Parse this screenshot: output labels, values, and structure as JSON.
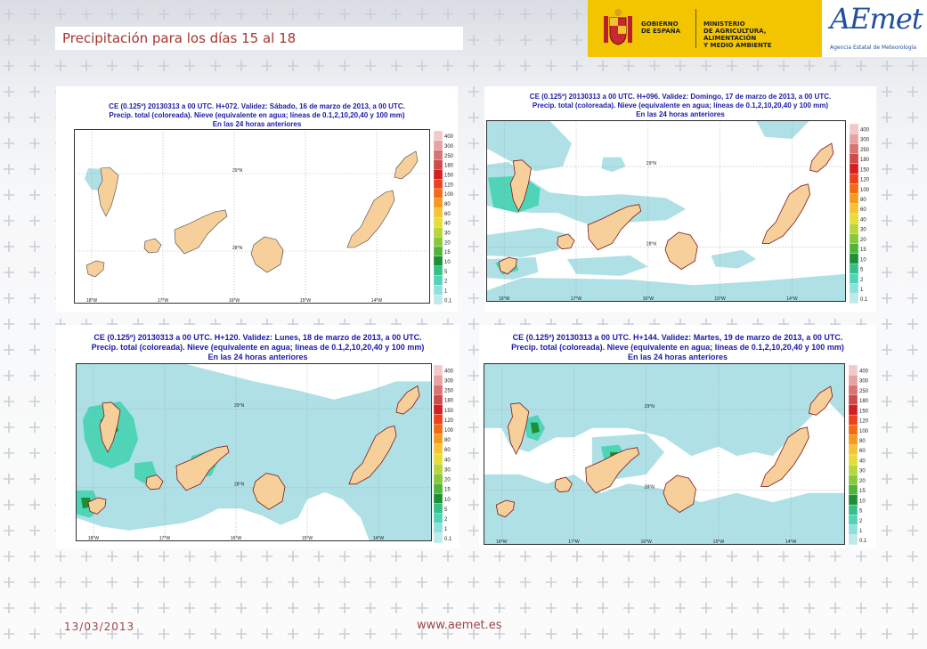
{
  "page": {
    "title": "Precipitación para los días 15 al 18",
    "date": "13/03/2013",
    "url": "www.aemet.es"
  },
  "header": {
    "gobierno": "GOBIERNO\nDE ESPAÑA",
    "ministerio": "MINISTERIO\nDE AGRICULTURA, ALIMENTACIÓN\nY MEDIO AMBIENTE",
    "aemet_logo": "AEmet",
    "aemet_sub": "Agencia Estatal de Meteorología"
  },
  "legend": {
    "values": [
      "400",
      "300",
      "250",
      "180",
      "150",
      "120",
      "100",
      "80",
      "60",
      "40",
      "30",
      "20",
      "15",
      "10",
      "5",
      "2",
      "1",
      "0.1"
    ],
    "colors": [
      "#f2c9c9",
      "#e6a3a3",
      "#d77474",
      "#cf4a4a",
      "#d22020",
      "#ef3f1c",
      "#f26a14",
      "#f59a1f",
      "#f7c233",
      "#e6dd3a",
      "#b9d53a",
      "#89c83b",
      "#4fb43c",
      "#1f8f36",
      "#35c08a",
      "#4fd4b8",
      "#8fe0dc",
      "#bfe9ea"
    ]
  },
  "axes": {
    "lon_labels": [
      "18°W",
      "17°W",
      "16°W",
      "15°W",
      "14°W"
    ],
    "lat_labels": [
      "29°N",
      "28°N"
    ]
  },
  "colors": {
    "land": "#f7cf9a",
    "light_precip": "#aee0e6",
    "moderate_precip": "#4fd4b8",
    "heavy_precip": "#1f8f36",
    "caption": "#1a1aa8",
    "title": "#a4362e"
  },
  "maps": [
    {
      "line1": "CE (0.125º) 20130313 a 00 UTC.  H+072.  Validez: Sábado, 16 de marzo de 2013,  a  00 UTC.",
      "line2": "Precip. total (coloreada). Nieve (equivalente en agua; líneas de 0.1,2,10,20,40 y 100 mm)",
      "line3": "En las 24 horas anteriores"
    },
    {
      "line1": "CE (0.125º) 20130313 a 00 UTC.  H+096.  Validez: Domingo, 17 de marzo de 2013,  a  00 UTC.",
      "line2": "Precip. total (coloreada). Nieve (equivalente en agua; líneas de 0.1,2,10,20,40 y 100 mm)",
      "line3": "En las 24 horas anteriores"
    },
    {
      "line1": "CE (0.125º) 20130313 a 00 UTC.  H+120.  Validez: Lunes, 18 de marzo de 2013,  a  00 UTC.",
      "line2": "Precip. total (coloreada). Nieve (equivalente en agua; líneas de 0.1,2,10,20,40 y 100 mm)",
      "line3": "En las 24 horas anteriores"
    },
    {
      "line1": "CE (0.125º) 20130313 a 00 UTC.  H+144.  Validez: Martes, 19 de marzo de 2013,  a  00 UTC.",
      "line2": "Precip. total (coloreada). Nieve (equivalente en agua; líneas de 0.1,2,10,20,40 y 100 mm)",
      "line3": "En las 24 horas anteriores"
    }
  ]
}
